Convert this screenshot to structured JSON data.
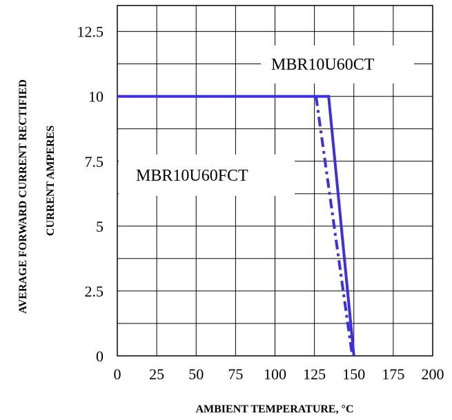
{
  "chart_data": {
    "type": "line",
    "title": "",
    "xlabel": "AMBIENT TEMPERATURE, °C",
    "ylabel_lines": [
      "AVERAGE FORWARD CURRENT RECTIFIED",
      "CURRENT AMPERES"
    ],
    "xlim": [
      0,
      200
    ],
    "ylim": [
      0,
      13.5
    ],
    "x_ticks": [
      0,
      25,
      50,
      75,
      100,
      125,
      150,
      175,
      200
    ],
    "x_tick_labels": [
      "0",
      "25",
      "50",
      "75",
      "100",
      "125",
      "150",
      "175",
      "200"
    ],
    "y_ticks": [
      0,
      2.5,
      5,
      7.5,
      10,
      12.5
    ],
    "y_tick_labels": [
      "0",
      "2.5",
      "5",
      "7.5",
      "10",
      "12.5"
    ],
    "grid": true,
    "series": [
      {
        "name": "MBR10U60CT",
        "style": "solid",
        "color": "#3a2ee8",
        "points": [
          [
            0,
            10
          ],
          [
            134,
            10
          ],
          [
            150,
            0
          ]
        ]
      },
      {
        "name": "MBR10U60FCT",
        "style": "dash-dot",
        "color": "#3a2ee8",
        "points": [
          [
            126,
            10
          ],
          [
            149,
            0
          ]
        ]
      }
    ],
    "annotations": [
      {
        "text": "MBR10U60CT",
        "series": 0
      },
      {
        "text": "MBR10U60FCT",
        "series": 1
      }
    ]
  }
}
